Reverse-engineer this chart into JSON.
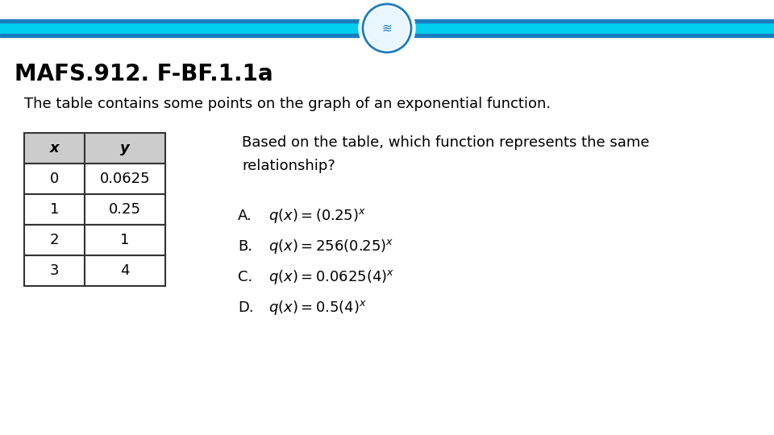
{
  "title": "MAFS.912. F-BF.1.1a",
  "subtitle": "The table contains some points on the graph of an exponential function.",
  "question": "Based on the table, which function represents the same\nrelationship?",
  "table_headers": [
    "x",
    "y"
  ],
  "table_data": [
    [
      "0",
      "0.0625"
    ],
    [
      "1",
      "0.25"
    ],
    [
      "2",
      "1"
    ],
    [
      "3",
      "4"
    ]
  ],
  "formulas": [
    "$q(x) = (0.25)^x$",
    "$q(x) = 256(0.25)^x$",
    "$q(x) = 0.0625(4)^x$",
    "$q(x) = 0.5(4)^x$"
  ],
  "choice_labels": [
    "A.",
    "B.",
    "C.",
    "D."
  ],
  "bar_color_main": "#00CFEF",
  "bar_color_dark": "#1A7DC0",
  "logo_border_color": "#1A7DC0",
  "logo_inner_color": "#EAF6FF",
  "background_color": "#FFFFFF",
  "title_color": "#000000",
  "table_header_bg": "#CCCCCC",
  "table_border_color": "#333333"
}
